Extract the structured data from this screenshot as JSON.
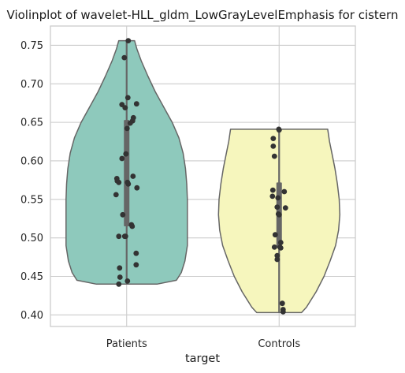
{
  "chart_data": {
    "type": "violin",
    "title": "Violinplot of wavelet-HLL_gldm_LowGrayLevelEmphasis for cistern",
    "xlabel": "target",
    "ylabel": "",
    "ylim": [
      0.385,
      0.775
    ],
    "yticks": [
      0.4,
      0.45,
      0.5,
      0.55,
      0.6,
      0.65,
      0.7,
      0.75
    ],
    "ytick_labels": [
      "0.40",
      "0.45",
      "0.50",
      "0.55",
      "0.60",
      "0.65",
      "0.70",
      "0.75"
    ],
    "grid": true,
    "categories": [
      "Patients",
      "Controls"
    ],
    "colors": {
      "Patients": "#8ec9bc",
      "Controls": "#f6f6bd",
      "outline": "#666666",
      "points": "#333333",
      "grid": "#cccccc"
    },
    "series": [
      {
        "category": "Patients",
        "min": 0.44,
        "max": 0.756,
        "q1": 0.515,
        "q3": 0.653,
        "profile": [
          [
            0.44,
            0.5
          ],
          [
            0.445,
            0.82
          ],
          [
            0.455,
            0.9
          ],
          [
            0.47,
            0.96
          ],
          [
            0.49,
            1.0
          ],
          [
            0.51,
            1.0
          ],
          [
            0.53,
            1.0
          ],
          [
            0.55,
            1.0
          ],
          [
            0.57,
            0.99
          ],
          [
            0.59,
            0.97
          ],
          [
            0.61,
            0.93
          ],
          [
            0.63,
            0.86
          ],
          [
            0.65,
            0.75
          ],
          [
            0.67,
            0.61
          ],
          [
            0.69,
            0.47
          ],
          [
            0.71,
            0.35
          ],
          [
            0.73,
            0.24
          ],
          [
            0.745,
            0.17
          ],
          [
            0.756,
            0.13
          ]
        ],
        "points": [
          [
            0.04,
            0.756
          ],
          [
            -0.06,
            0.734
          ],
          [
            0.03,
            0.682
          ],
          [
            -0.12,
            0.673
          ],
          [
            0.25,
            0.674
          ],
          [
            -0.04,
            0.669
          ],
          [
            0.17,
            0.656
          ],
          [
            0.15,
            0.652
          ],
          [
            0.09,
            0.649
          ],
          [
            0.01,
            0.642
          ],
          [
            -0.12,
            0.603
          ],
          [
            -0.02,
            0.609
          ],
          [
            -0.25,
            0.577
          ],
          [
            -0.24,
            0.574
          ],
          [
            -0.2,
            0.572
          ],
          [
            0.02,
            0.572
          ],
          [
            0.04,
            0.57
          ],
          [
            0.16,
            0.58
          ],
          [
            0.26,
            0.565
          ],
          [
            -0.27,
            0.556
          ],
          [
            -0.1,
            0.53
          ],
          [
            0.12,
            0.517
          ],
          [
            0.14,
            0.515
          ],
          [
            -0.03,
            0.502
          ],
          [
            -0.05,
            0.502
          ],
          [
            -0.2,
            0.502
          ],
          [
            0.24,
            0.48
          ],
          [
            -0.18,
            0.461
          ],
          [
            0.24,
            0.465
          ],
          [
            -0.17,
            0.449
          ],
          [
            0.02,
            0.444
          ],
          [
            -0.2,
            0.44
          ]
        ]
      },
      {
        "category": "Controls",
        "min": 0.403,
        "max": 0.641,
        "q1": 0.487,
        "q3": 0.572,
        "profile": [
          [
            0.403,
            0.37
          ],
          [
            0.41,
            0.45
          ],
          [
            0.43,
            0.61
          ],
          [
            0.45,
            0.74
          ],
          [
            0.47,
            0.84
          ],
          [
            0.49,
            0.93
          ],
          [
            0.51,
            0.98
          ],
          [
            0.53,
            1.0
          ],
          [
            0.55,
            0.99
          ],
          [
            0.57,
            0.96
          ],
          [
            0.59,
            0.92
          ],
          [
            0.61,
            0.87
          ],
          [
            0.625,
            0.83
          ],
          [
            0.641,
            0.8
          ]
        ],
        "points": [
          [
            -0.01,
            0.641
          ],
          [
            0.0,
            0.64
          ],
          [
            -0.15,
            0.629
          ],
          [
            -0.15,
            0.619
          ],
          [
            -0.12,
            0.606
          ],
          [
            -0.16,
            0.562
          ],
          [
            0.13,
            0.56
          ],
          [
            -0.17,
            0.554
          ],
          [
            -0.03,
            0.552
          ],
          [
            -0.05,
            0.54
          ],
          [
            0.16,
            0.539
          ],
          [
            -0.02,
            0.531
          ],
          [
            0.0,
            0.53
          ],
          [
            -0.1,
            0.504
          ],
          [
            0.04,
            0.494
          ],
          [
            0.02,
            0.488
          ],
          [
            -0.12,
            0.488
          ],
          [
            0.04,
            0.487
          ],
          [
            -0.05,
            0.477
          ],
          [
            -0.05,
            0.472
          ],
          [
            0.08,
            0.415
          ],
          [
            0.1,
            0.407
          ],
          [
            0.1,
            0.404
          ]
        ]
      }
    ]
  }
}
